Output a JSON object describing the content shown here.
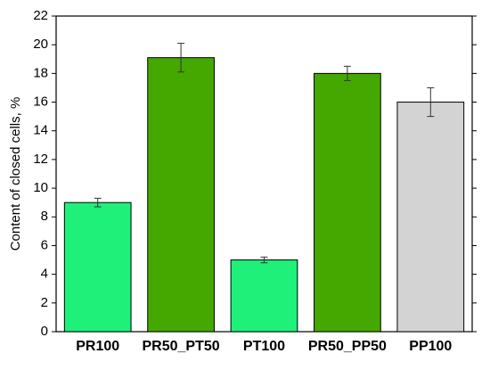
{
  "chart_data": {
    "type": "bar",
    "ylabel": "Content of closed cells, %",
    "categories": [
      "PR100",
      "PR50_PT50",
      "PT100",
      "PR50_PP50",
      "PP100"
    ],
    "values": [
      9.0,
      19.1,
      5.0,
      18.0,
      16.0
    ],
    "errors": [
      0.3,
      1.0,
      0.2,
      0.5,
      1.0
    ],
    "colors": [
      "#1ff07a",
      "#44a800",
      "#1ff07a",
      "#44a800",
      "#d3d3d3"
    ],
    "ylim": [
      0,
      22
    ],
    "yticks": [
      0,
      2,
      4,
      6,
      8,
      10,
      12,
      14,
      16,
      18,
      20,
      22
    ]
  }
}
